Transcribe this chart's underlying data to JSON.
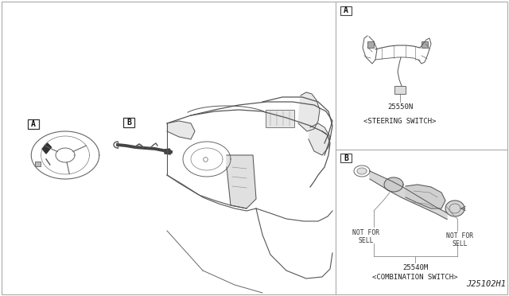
{
  "bg_color": "#ffffff",
  "fig_width": 6.4,
  "fig_height": 3.72,
  "part_number_bottom_right": "J25102H1",
  "panel_A_label": "A",
  "panel_B_label": "B",
  "panel_A_part_number": "25550N",
  "panel_A_caption": "<STEERING SWITCH>",
  "panel_B_part_number": "25540M",
  "panel_B_caption": "<COMBINATION SWITCH>",
  "label_A_main": "A",
  "label_B_main": "B",
  "not_for_sell_left": "NOT FOR\nSELL",
  "not_for_sell_right": "NOT FOR\nSELL",
  "border_color": "#aaaaaa",
  "line_color": "#555555",
  "text_color": "#222222"
}
